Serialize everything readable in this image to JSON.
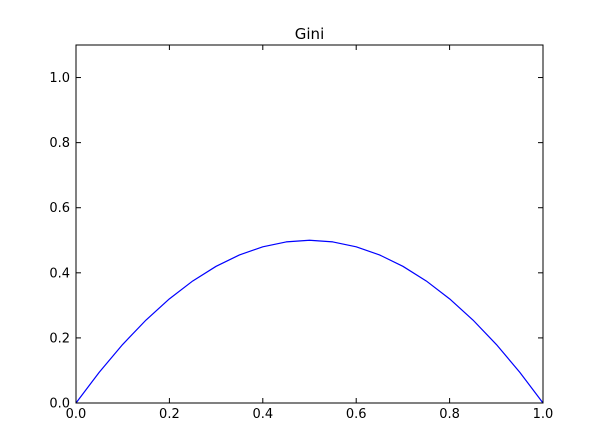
{
  "chart_data": {
    "type": "line",
    "title": "Gini",
    "xlabel": "",
    "ylabel": "",
    "xlim": [
      0.0,
      1.0
    ],
    "ylim": [
      0.0,
      1.1
    ],
    "xticks": [
      "0.0",
      "0.2",
      "0.4",
      "0.6",
      "0.8",
      "1.0"
    ],
    "yticks": [
      "0.0",
      "0.2",
      "0.4",
      "0.6",
      "0.8",
      "1.0"
    ],
    "grid": false,
    "series": [
      {
        "color": "#0000ff",
        "x": [
          0.0,
          0.05,
          0.1,
          0.15,
          0.2,
          0.25,
          0.3,
          0.35,
          0.4,
          0.45,
          0.5,
          0.55,
          0.6,
          0.65,
          0.7,
          0.75,
          0.8,
          0.85,
          0.9,
          0.95,
          1.0
        ],
        "y": [
          0.0,
          0.095,
          0.18,
          0.255,
          0.32,
          0.375,
          0.42,
          0.455,
          0.48,
          0.495,
          0.5,
          0.495,
          0.48,
          0.455,
          0.42,
          0.375,
          0.32,
          0.255,
          0.18,
          0.095,
          0.0
        ]
      }
    ]
  }
}
